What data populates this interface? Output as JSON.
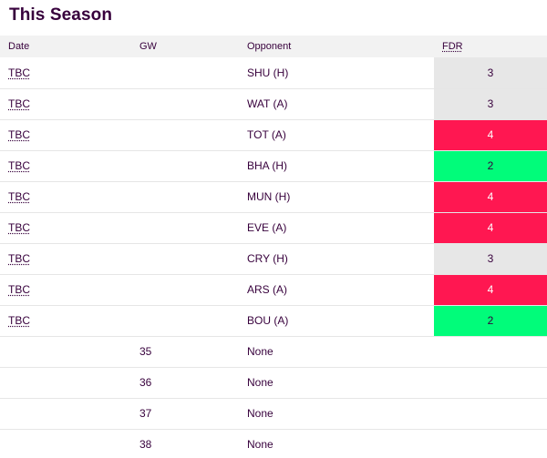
{
  "section": {
    "title": "This Season"
  },
  "table": {
    "headers": {
      "date": "Date",
      "gw": "GW",
      "opponent": "Opponent",
      "fdr": "FDR"
    },
    "rows": [
      {
        "date": "TBC",
        "gw": "",
        "opponent": "SHU (H)",
        "fdr": "3"
      },
      {
        "date": "TBC",
        "gw": "",
        "opponent": "WAT (A)",
        "fdr": "3"
      },
      {
        "date": "TBC",
        "gw": "",
        "opponent": "TOT (A)",
        "fdr": "4"
      },
      {
        "date": "TBC",
        "gw": "",
        "opponent": "BHA (H)",
        "fdr": "2"
      },
      {
        "date": "TBC",
        "gw": "",
        "opponent": "MUN (H)",
        "fdr": "4"
      },
      {
        "date": "TBC",
        "gw": "",
        "opponent": "EVE (A)",
        "fdr": "4"
      },
      {
        "date": "TBC",
        "gw": "",
        "opponent": "CRY (H)",
        "fdr": "3"
      },
      {
        "date": "TBC",
        "gw": "",
        "opponent": "ARS (A)",
        "fdr": "4"
      },
      {
        "date": "TBC",
        "gw": "",
        "opponent": "BOU (A)",
        "fdr": "2"
      },
      {
        "date": "",
        "gw": "35",
        "opponent": "None",
        "fdr": ""
      },
      {
        "date": "",
        "gw": "36",
        "opponent": "None",
        "fdr": ""
      },
      {
        "date": "",
        "gw": "37",
        "opponent": "None",
        "fdr": ""
      },
      {
        "date": "",
        "gw": "38",
        "opponent": "None",
        "fdr": ""
      }
    ]
  },
  "fdr_colors": {
    "2": "#01fc7a",
    "3": "#e7e7e7",
    "4": "#ff1751"
  }
}
